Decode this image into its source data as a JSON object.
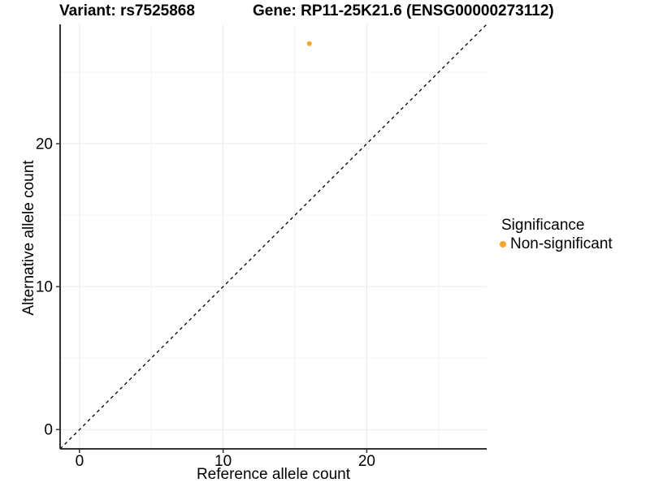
{
  "colors": {
    "background": "#ffffff",
    "axis_line": "#333333",
    "grid_major": "#e9e9e9",
    "grid_minor": "#f3f3f3",
    "text": "#000000",
    "point_orange": "#FFA32A",
    "reference_line": "#000000"
  },
  "chart_data": {
    "type": "scatter",
    "title_left": "Variant: rs7525868",
    "title_right": "Gene: RP11-25K21.6 (ENSG00000273112)",
    "xlabel": "Reference allele count",
    "ylabel": "Alternative allele count",
    "xlim": [
      -1.35,
      28.35
    ],
    "ylim": [
      -1.35,
      28.35
    ],
    "x_major_ticks": [
      0,
      10,
      20
    ],
    "y_major_ticks": [
      0,
      10,
      20
    ],
    "x_minor_ticks": [
      5,
      15,
      25
    ],
    "y_minor_ticks": [
      5,
      15,
      25
    ],
    "grid": "major and minor gridlines, white panel",
    "reference_line": {
      "type": "identity y=x",
      "style": "dashed",
      "color": "#000000"
    },
    "series": [
      {
        "name": "Non-significant",
        "color": "#FFA32A",
        "points": [
          {
            "x": 16,
            "y": 27
          }
        ]
      }
    ],
    "legend": {
      "title": "Significance",
      "position": "right",
      "entries": [
        {
          "label": "Non-significant",
          "color": "#FFA32A",
          "marker": "circle"
        }
      ]
    }
  }
}
